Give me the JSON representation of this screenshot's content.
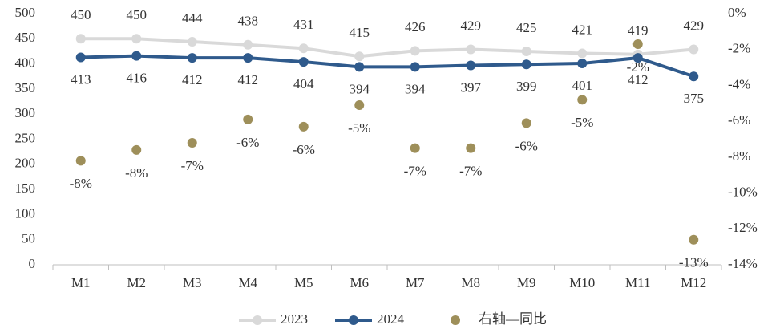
{
  "chart_data": {
    "type": "line",
    "categories": [
      "M1",
      "M2",
      "M3",
      "M4",
      "M5",
      "M6",
      "M7",
      "M8",
      "M9",
      "M10",
      "M11",
      "M12"
    ],
    "series": [
      {
        "name": "2023",
        "color": "#d9d9d9",
        "values": [
          450,
          450,
          444,
          438,
          431,
          415,
          426,
          429,
          425,
          421,
          419,
          429
        ]
      },
      {
        "name": "2024",
        "color": "#2f5a8c",
        "values": [
          413,
          416,
          412,
          412,
          404,
          394,
          394,
          397,
          399,
          401,
          412,
          375
        ]
      },
      {
        "name": "右轴—同比",
        "color": "#9e8f5a",
        "type": "scatter",
        "axis": "y2",
        "values": [
          -8.2,
          -7.6,
          -7.2,
          -5.9,
          -6.3,
          -5.1,
          -7.5,
          -7.5,
          -6.1,
          -4.8,
          -1.7,
          -12.6
        ],
        "value_labels": [
          "-8%",
          "-8%",
          "-7%",
          "-6%",
          "-6%",
          "-5%",
          "-7%",
          "-7%",
          "-6%",
          "-5%",
          "-2%",
          "-13%"
        ]
      }
    ],
    "ylim": [
      0,
      500
    ],
    "yticks": [
      0,
      50,
      100,
      150,
      200,
      250,
      300,
      350,
      400,
      450,
      500
    ],
    "y2lim": [
      -14,
      0
    ],
    "y2ticks": [
      {
        "value": 0,
        "label": "0%"
      },
      {
        "value": -2,
        "label": "-2%"
      },
      {
        "value": -4,
        "label": "-4%"
      },
      {
        "value": -6,
        "label": "-6%"
      },
      {
        "value": -8,
        "label": "-8%"
      },
      {
        "value": -10,
        "label": "-10%"
      },
      {
        "value": -12,
        "label": "-12%"
      },
      {
        "value": -14,
        "label": "-14%"
      }
    ],
    "legend": "bottom",
    "grid": false
  }
}
